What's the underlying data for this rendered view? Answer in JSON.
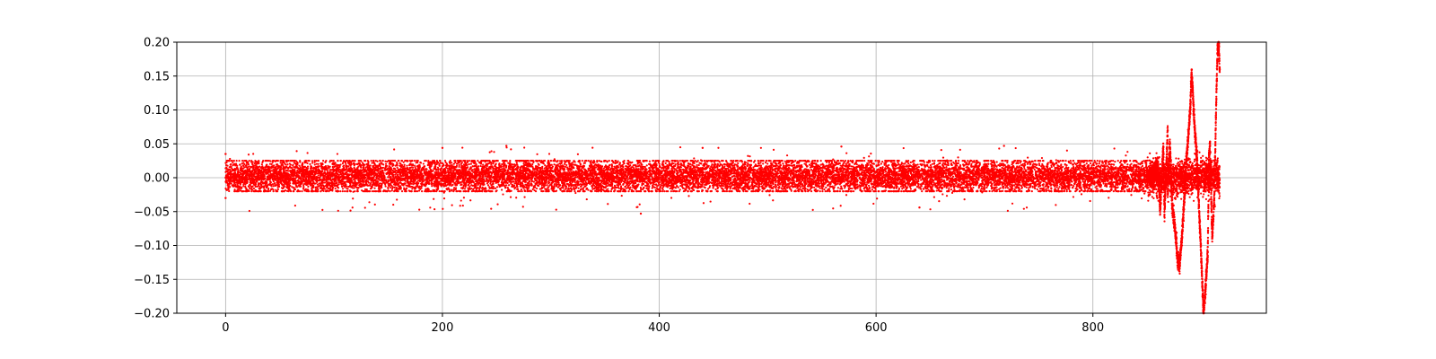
{
  "chart_data": {
    "type": "scatter",
    "title": "",
    "xlabel": "",
    "ylabel": "",
    "xlim": [
      -45,
      960
    ],
    "ylim": [
      -0.2,
      0.2
    ],
    "xticks": [
      0,
      200,
      400,
      600,
      800
    ],
    "xtick_labels": [
      "0",
      "200",
      "400",
      "600",
      "800"
    ],
    "yticks": [
      -0.2,
      -0.15,
      -0.1,
      -0.05,
      0.0,
      0.05,
      0.1,
      0.15,
      0.2
    ],
    "ytick_labels": [
      "−0.20",
      "−0.15",
      "−0.10",
      "−0.05",
      "0.00",
      "0.05",
      "0.10",
      "0.15",
      "0.20"
    ],
    "grid": true,
    "marker_color": "#ff0000",
    "series": [
      {
        "x_range": [
          0,
          917
        ],
        "noise_band_x": [
          0,
          850
        ],
        "noise_band_core_y": [
          -0.02,
          0.025
        ],
        "noise_band_outlier_y": [
          -0.05,
          0.045
        ],
        "points": [
          [
            0,
            0.0
          ],
          [
            0,
            0.035
          ],
          [
            0,
            -0.03
          ],
          [
            383,
            -0.053
          ],
          [
            259,
            0.047
          ],
          [
            718,
            0.047
          ],
          [
            568,
            0.046
          ],
          [
            200,
            0.044
          ],
          [
            440,
            0.044
          ],
          [
            640,
            -0.044
          ],
          [
            850,
            0.0
          ],
          [
            855,
            0.005
          ],
          [
            860,
            0.02
          ],
          [
            865,
            0.045
          ],
          [
            869,
            0.07
          ],
          [
            871,
            0.05
          ],
          [
            862,
            -0.045
          ],
          [
            866,
            -0.055
          ],
          [
            869,
            -0.02
          ],
          [
            873,
            -0.04
          ],
          [
            876,
            -0.08
          ],
          [
            878,
            -0.12
          ],
          [
            880,
            -0.13
          ],
          [
            882,
            -0.09
          ],
          [
            884,
            -0.04
          ],
          [
            886,
            0.02
          ],
          [
            888,
            0.06
          ],
          [
            890,
            0.11
          ],
          [
            891,
            0.155
          ],
          [
            892,
            0.13
          ],
          [
            894,
            0.07
          ],
          [
            896,
            0.03
          ],
          [
            898,
            -0.05
          ],
          [
            900,
            -0.12
          ],
          [
            901,
            -0.16
          ],
          [
            902,
            -0.2
          ],
          [
            904,
            -0.16
          ],
          [
            906,
            -0.11
          ],
          [
            907,
            0.03
          ],
          [
            908,
            0.05
          ],
          [
            910,
            -0.09
          ],
          [
            912,
            -0.03
          ],
          [
            913,
            0.05
          ],
          [
            914,
            0.13
          ],
          [
            915,
            0.19
          ],
          [
            916,
            0.2
          ],
          [
            917,
            0.16
          ]
        ]
      }
    ]
  }
}
